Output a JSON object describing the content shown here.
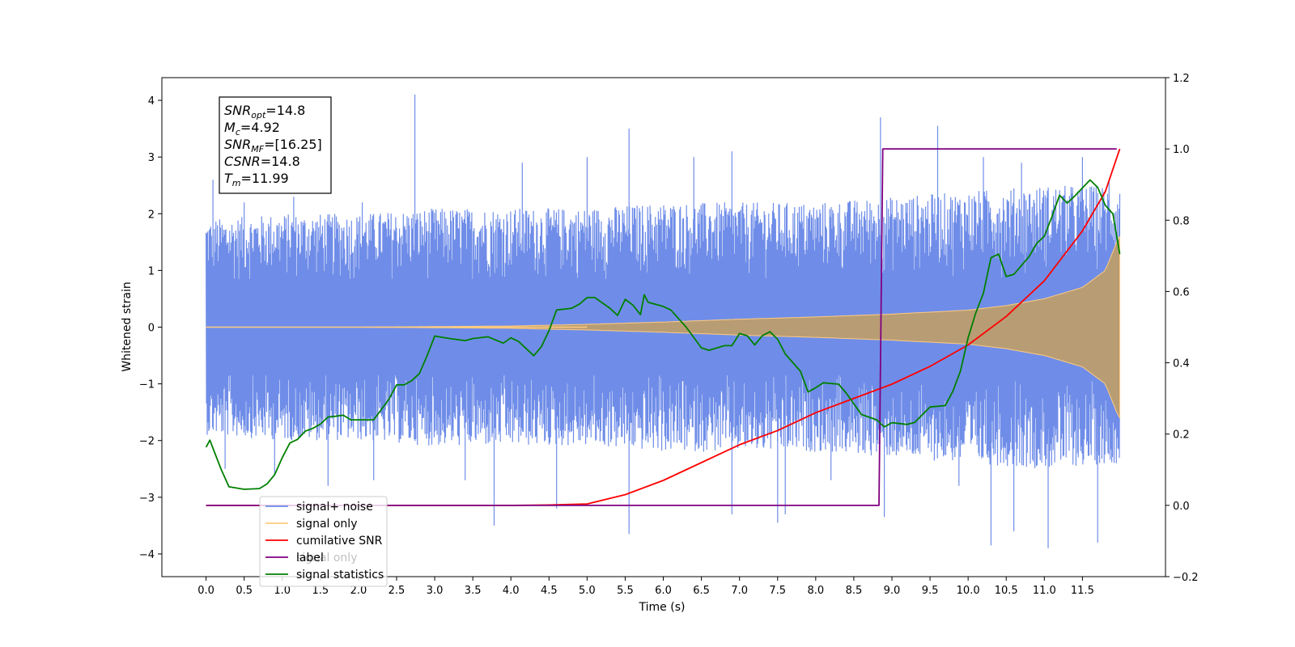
{
  "chart_data": {
    "type": "line",
    "xlabel": "Time (s)",
    "ylabel": "Whitened strain",
    "xlim": [
      -0.58,
      12.59
    ],
    "ylim": [
      -4.4,
      4.4
    ],
    "y2lim": [
      -0.2,
      1.2
    ],
    "xticks": [
      "0.0",
      "0.5",
      "1.0",
      "1.5",
      "2.0",
      "2.5",
      "3.0",
      "3.5",
      "4.0",
      "4.5",
      "5.0",
      "5.5",
      "6.0",
      "6.5",
      "7.0",
      "7.5",
      "8.0",
      "8.5",
      "9.0",
      "9.5",
      "10.0",
      "10.5",
      "11.0",
      "11.5"
    ],
    "xtick_values": [
      0,
      0.5,
      1,
      1.5,
      2,
      2.5,
      3,
      3.5,
      4,
      4.5,
      5,
      5.5,
      6,
      6.5,
      7,
      7.5,
      8,
      8.5,
      9,
      9.5,
      10,
      10.5,
      11,
      11.5
    ],
    "yticks": [
      "−4",
      "−3",
      "−2",
      "−1",
      "0",
      "1",
      "2",
      "3",
      "4"
    ],
    "ytick_values": [
      -4,
      -3,
      -2,
      -1,
      0,
      1,
      2,
      3,
      4
    ],
    "y2ticks": [
      "−0.2",
      "0.0",
      "0.2",
      "0.4",
      "0.6",
      "0.8",
      "1.0",
      "1.2"
    ],
    "y2tick_values": [
      -0.2,
      0,
      0.2,
      0.4,
      0.6,
      0.8,
      1.0,
      1.2
    ],
    "grid": false,
    "legend_position": "bottom-left",
    "legend": [
      {
        "label": "signal+ noise",
        "color": "#6f8de8"
      },
      {
        "label": "signal only",
        "color": "#ffcc80"
      },
      {
        "label": "cumilative SNR",
        "color": "#ff0000"
      },
      {
        "label": "label",
        "color": "#800080"
      },
      {
        "label": "signal only",
        "color": "#008000"
      },
      {
        "label": "signal statistics",
        "color": "#008000"
      }
    ],
    "info_box": [
      {
        "base": "SNR",
        "sub": "opt",
        "rest": "=14.8"
      },
      {
        "base": "M",
        "sub": "c",
        "rest": "=4.92"
      },
      {
        "base": "SNR",
        "sub": "MF",
        "rest": "=[16.25]"
      },
      {
        "base": "CSNR",
        "sub": "",
        "rest": "=14.8"
      },
      {
        "base": "T",
        "sub": "m",
        "rest": "=11.99"
      }
    ],
    "series": [
      {
        "name": "signal+ noise",
        "axis": "left",
        "color": "#6f8de8",
        "x_range": [
          0.0,
          11.99
        ],
        "envelope_upper": [
          [
            0.0,
            1.9
          ],
          [
            1.0,
            2.0
          ],
          [
            2.0,
            2.0
          ],
          [
            3.0,
            2.1
          ],
          [
            4.0,
            2.1
          ],
          [
            5.0,
            2.1
          ],
          [
            6.0,
            2.2
          ],
          [
            7.0,
            2.2
          ],
          [
            8.0,
            2.2
          ],
          [
            9.0,
            2.3
          ],
          [
            10.0,
            2.4
          ],
          [
            11.0,
            2.5
          ],
          [
            11.99,
            2.5
          ]
        ],
        "envelope_lower": [
          [
            0.0,
            -1.9
          ],
          [
            1.0,
            -2.0
          ],
          [
            2.0,
            -2.0
          ],
          [
            3.0,
            -2.1
          ],
          [
            4.0,
            -2.1
          ],
          [
            5.0,
            -2.1
          ],
          [
            6.0,
            -2.2
          ],
          [
            7.0,
            -2.2
          ],
          [
            8.0,
            -2.2
          ],
          [
            9.0,
            -2.3
          ],
          [
            10.0,
            -2.4
          ],
          [
            11.0,
            -2.5
          ],
          [
            11.99,
            -2.4
          ]
        ],
        "peaks": [
          [
            0.09,
            2.6
          ],
          [
            0.25,
            -2.5
          ],
          [
            0.5,
            2.2
          ],
          [
            0.9,
            -2.6
          ],
          [
            1.15,
            2.3
          ],
          [
            1.6,
            -2.8
          ],
          [
            2.05,
            2.2
          ],
          [
            2.2,
            -2.7
          ],
          [
            2.74,
            4.1
          ],
          [
            3.4,
            -2.7
          ],
          [
            3.78,
            -3.5
          ],
          [
            4.15,
            2.9
          ],
          [
            4.6,
            -3.2
          ],
          [
            5.0,
            3.0
          ],
          [
            5.55,
            3.5
          ],
          [
            5.55,
            -3.65
          ],
          [
            6.4,
            3.0
          ],
          [
            6.9,
            3.1
          ],
          [
            6.9,
            -3.3
          ],
          [
            7.5,
            -3.45
          ],
          [
            7.6,
            -3.3
          ],
          [
            8.2,
            -2.7
          ],
          [
            8.85,
            3.7
          ],
          [
            8.9,
            -3.35
          ],
          [
            9.6,
            3.55
          ],
          [
            9.88,
            -2.8
          ],
          [
            10.2,
            3.0
          ],
          [
            10.3,
            -3.85
          ],
          [
            10.6,
            -3.6
          ],
          [
            10.7,
            2.9
          ],
          [
            11.05,
            -3.9
          ],
          [
            11.5,
            3.0
          ],
          [
            11.7,
            -3.8
          ],
          [
            11.85,
            2.6
          ]
        ]
      },
      {
        "name": "signal only",
        "axis": "left",
        "color": "#ffcc80",
        "fill_color": "#b89c74",
        "envelope": [
          [
            0.0,
            0.0
          ],
          [
            1.0,
            0.0
          ],
          [
            2.0,
            0.0
          ],
          [
            3.0,
            0.01
          ],
          [
            4.0,
            0.02
          ],
          [
            5.0,
            0.05
          ],
          [
            6.0,
            0.09
          ],
          [
            7.0,
            0.14
          ],
          [
            8.0,
            0.18
          ],
          [
            9.0,
            0.23
          ],
          [
            10.0,
            0.3
          ],
          [
            10.5,
            0.38
          ],
          [
            11.0,
            0.5
          ],
          [
            11.5,
            0.7
          ],
          [
            11.8,
            1.0
          ],
          [
            11.95,
            1.5
          ],
          [
            11.99,
            1.6
          ]
        ]
      },
      {
        "name": "cumilative SNR",
        "axis": "right",
        "color": "#ff0000",
        "points": [
          [
            0.0,
            0.0
          ],
          [
            4.0,
            0.0
          ],
          [
            4.5,
            0.001
          ],
          [
            5.0,
            0.004
          ],
          [
            5.5,
            0.03
          ],
          [
            6.0,
            0.07
          ],
          [
            6.5,
            0.12
          ],
          [
            7.0,
            0.17
          ],
          [
            7.5,
            0.21
          ],
          [
            8.0,
            0.26
          ],
          [
            8.5,
            0.3
          ],
          [
            9.0,
            0.34
          ],
          [
            9.5,
            0.39
          ],
          [
            10.0,
            0.45
          ],
          [
            10.5,
            0.53
          ],
          [
            11.0,
            0.63
          ],
          [
            11.5,
            0.77
          ],
          [
            11.8,
            0.88
          ],
          [
            11.99,
            1.0
          ]
        ]
      },
      {
        "name": "label",
        "axis": "right",
        "color": "#800080",
        "points": [
          [
            0.0,
            0.0
          ],
          [
            8.83,
            0.0
          ],
          [
            8.88,
            1.0
          ],
          [
            11.95,
            1.0
          ]
        ]
      },
      {
        "name": "signal statistics",
        "axis": "right",
        "color": "#008000",
        "points": [
          [
            0.0,
            0.163
          ],
          [
            0.05,
            0.183
          ],
          [
            0.1,
            0.155
          ],
          [
            0.2,
            0.1
          ],
          [
            0.3,
            0.052
          ],
          [
            0.5,
            0.045
          ],
          [
            0.7,
            0.047
          ],
          [
            0.8,
            0.06
          ],
          [
            0.9,
            0.086
          ],
          [
            1.0,
            0.134
          ],
          [
            1.1,
            0.175
          ],
          [
            1.2,
            0.185
          ],
          [
            1.3,
            0.208
          ],
          [
            1.4,
            0.216
          ],
          [
            1.5,
            0.228
          ],
          [
            1.6,
            0.248
          ],
          [
            1.7,
            0.25
          ],
          [
            1.8,
            0.253
          ],
          [
            1.9,
            0.24
          ],
          [
            2.0,
            0.24
          ],
          [
            2.2,
            0.24
          ],
          [
            2.4,
            0.298
          ],
          [
            2.5,
            0.338
          ],
          [
            2.6,
            0.338
          ],
          [
            2.7,
            0.35
          ],
          [
            2.8,
            0.37
          ],
          [
            2.9,
            0.42
          ],
          [
            3.0,
            0.475
          ],
          [
            3.2,
            0.468
          ],
          [
            3.4,
            0.462
          ],
          [
            3.5,
            0.468
          ],
          [
            3.7,
            0.473
          ],
          [
            3.9,
            0.455
          ],
          [
            4.0,
            0.47
          ],
          [
            4.1,
            0.46
          ],
          [
            4.3,
            0.42
          ],
          [
            4.4,
            0.445
          ],
          [
            4.5,
            0.49
          ],
          [
            4.6,
            0.548
          ],
          [
            4.8,
            0.553
          ],
          [
            4.9,
            0.565
          ],
          [
            5.0,
            0.583
          ],
          [
            5.1,
            0.583
          ],
          [
            5.3,
            0.553
          ],
          [
            5.4,
            0.533
          ],
          [
            5.5,
            0.578
          ],
          [
            5.6,
            0.562
          ],
          [
            5.7,
            0.535
          ],
          [
            5.75,
            0.591
          ],
          [
            5.8,
            0.57
          ],
          [
            6.0,
            0.558
          ],
          [
            6.1,
            0.548
          ],
          [
            6.3,
            0.5
          ],
          [
            6.5,
            0.442
          ],
          [
            6.6,
            0.435
          ],
          [
            6.8,
            0.448
          ],
          [
            6.9,
            0.448
          ],
          [
            7.0,
            0.482
          ],
          [
            7.1,
            0.476
          ],
          [
            7.2,
            0.45
          ],
          [
            7.3,
            0.476
          ],
          [
            7.4,
            0.487
          ],
          [
            7.5,
            0.466
          ],
          [
            7.6,
            0.425
          ],
          [
            7.8,
            0.376
          ],
          [
            7.9,
            0.318
          ],
          [
            8.0,
            0.33
          ],
          [
            8.1,
            0.344
          ],
          [
            8.3,
            0.34
          ],
          [
            8.4,
            0.315
          ],
          [
            8.6,
            0.255
          ],
          [
            8.8,
            0.24
          ],
          [
            8.9,
            0.22
          ],
          [
            9.0,
            0.232
          ],
          [
            9.2,
            0.227
          ],
          [
            9.3,
            0.233
          ],
          [
            9.5,
            0.276
          ],
          [
            9.7,
            0.28
          ],
          [
            9.8,
            0.32
          ],
          [
            9.9,
            0.377
          ],
          [
            10.0,
            0.47
          ],
          [
            10.1,
            0.54
          ],
          [
            10.2,
            0.595
          ],
          [
            10.3,
            0.695
          ],
          [
            10.4,
            0.705
          ],
          [
            10.5,
            0.642
          ],
          [
            10.6,
            0.648
          ],
          [
            10.8,
            0.698
          ],
          [
            10.9,
            0.735
          ],
          [
            11.0,
            0.755
          ],
          [
            11.1,
            0.81
          ],
          [
            11.2,
            0.87
          ],
          [
            11.3,
            0.848
          ],
          [
            11.4,
            0.868
          ],
          [
            11.6,
            0.913
          ],
          [
            11.7,
            0.892
          ],
          [
            11.8,
            0.842
          ],
          [
            11.9,
            0.818
          ],
          [
            11.99,
            0.705
          ]
        ]
      }
    ]
  }
}
